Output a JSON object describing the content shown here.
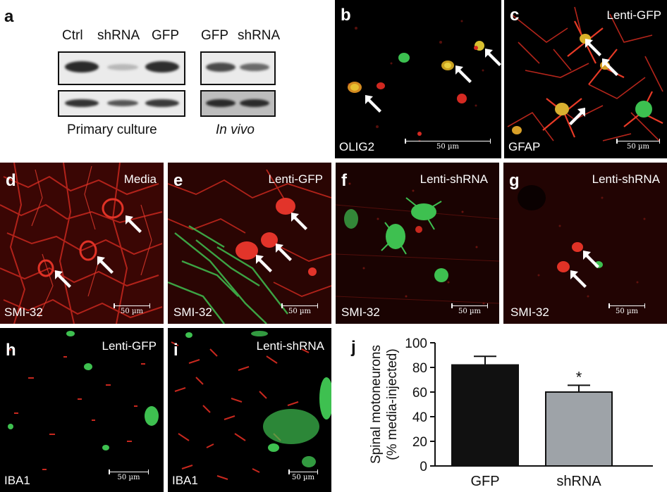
{
  "panel_a": {
    "letter": "a",
    "lanes_culture": [
      "Ctrl",
      "shRNA",
      "GFP"
    ],
    "lanes_vivo": [
      "GFP",
      "shRNA"
    ],
    "caption_culture": "Primary culture",
    "caption_vivo": "In vivo"
  },
  "panels": {
    "b": {
      "letter": "b",
      "stain": "OLIG2",
      "scale": "50 µm"
    },
    "c": {
      "letter": "c",
      "condition": "Lenti-GFP",
      "stain": "GFAP",
      "scale": "50 µm"
    },
    "d": {
      "letter": "d",
      "condition": "Media",
      "stain": "SMI-32",
      "scale": "50 µm"
    },
    "e": {
      "letter": "e",
      "condition": "Lenti-GFP",
      "stain": "SMI-32",
      "scale": "50 µm"
    },
    "f": {
      "letter": "f",
      "condition": "Lenti-shRNA",
      "stain": "SMI-32",
      "scale": "50 µm"
    },
    "g": {
      "letter": "g",
      "condition": "Lenti-shRNA",
      "stain": "SMI-32",
      "scale": "50 µm"
    },
    "h": {
      "letter": "h",
      "condition": "Lenti-GFP",
      "stain": "IBA1",
      "scale": "50 µm"
    },
    "i": {
      "letter": "i",
      "condition": "Lenti-shRNA",
      "stain": "IBA1",
      "scale": "50 µm"
    }
  },
  "colors": {
    "red_stain": "#e0281e",
    "green_stain": "#38c84a",
    "bar_gfp": "#111111",
    "bar_shrna": "#9ea3a8"
  },
  "chart_data": {
    "panel_letter": "j",
    "type": "bar",
    "categories": [
      "GFP",
      "shRNA"
    ],
    "values": [
      82,
      60
    ],
    "errors": [
      7,
      5.5
    ],
    "significance": [
      "",
      "*"
    ],
    "ylabel_line1": "Spinal motoneurons",
    "ylabel_line2": "(% media-injected)",
    "ylim": [
      0,
      100
    ],
    "yticks": [
      "0",
      "20",
      "40",
      "60",
      "80",
      "100"
    ]
  }
}
